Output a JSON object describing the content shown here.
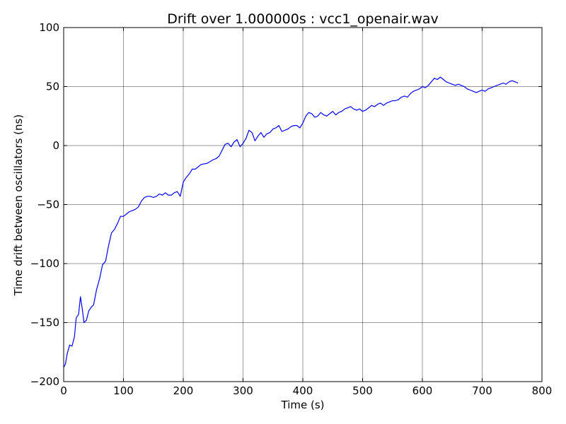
{
  "chart_data": {
    "type": "line",
    "title": "Drift over 1.000000s : vcc1_openair.wav",
    "xlabel": "Time (s)",
    "ylabel": "Time drift between oscillators (ns)",
    "xlim": [
      0,
      800
    ],
    "ylim": [
      -200,
      100
    ],
    "xticks": [
      0,
      100,
      200,
      300,
      400,
      500,
      600,
      700,
      800
    ],
    "yticks": [
      -200,
      -150,
      -100,
      -50,
      0,
      50,
      100
    ],
    "xtick_labels": [
      "0",
      "100",
      "200",
      "300",
      "400",
      "500",
      "600",
      "700",
      "800"
    ],
    "ytick_labels": [
      "−200",
      "−150",
      "−100",
      "−50",
      "0",
      "50",
      "100"
    ],
    "grid": true,
    "series": [
      {
        "color": "#0000ff",
        "x": [
          0,
          3,
          6,
          10,
          14,
          18,
          21,
          25,
          28,
          31,
          34,
          38,
          42,
          46,
          50,
          55,
          60,
          65,
          70,
          75,
          80,
          85,
          90,
          95,
          100,
          105,
          110,
          115,
          120,
          125,
          130,
          135,
          140,
          145,
          150,
          155,
          160,
          165,
          170,
          175,
          180,
          185,
          190,
          195,
          200,
          205,
          210,
          215,
          220,
          230,
          240,
          250,
          255,
          260,
          265,
          270,
          275,
          280,
          285,
          290,
          295,
          300,
          305,
          310,
          315,
          320,
          325,
          330,
          335,
          340,
          345,
          350,
          355,
          360,
          365,
          370,
          375,
          380,
          385,
          390,
          395,
          400,
          405,
          410,
          415,
          420,
          425,
          430,
          435,
          440,
          445,
          450,
          455,
          460,
          465,
          470,
          475,
          480,
          485,
          490,
          495,
          500,
          505,
          510,
          515,
          520,
          525,
          530,
          535,
          540,
          545,
          550,
          555,
          560,
          565,
          570,
          575,
          580,
          585,
          590,
          595,
          600,
          605,
          610,
          615,
          620,
          625,
          630,
          635,
          640,
          645,
          650,
          655,
          660,
          665,
          670,
          675,
          680,
          685,
          690,
          695,
          700,
          705,
          710,
          715,
          720,
          725,
          730,
          735,
          740,
          745,
          750,
          755,
          760
        ],
        "y": [
          -188,
          -185,
          -176,
          -169,
          -170,
          -162,
          -146,
          -143,
          -128,
          -138,
          -150,
          -148,
          -140,
          -137,
          -135,
          -122,
          -113,
          -101,
          -98,
          -85,
          -74,
          -71,
          -66,
          -60,
          -60,
          -58,
          -56,
          -55,
          -54,
          -52,
          -47,
          -44,
          -43,
          -43,
          -44,
          -43,
          -41,
          -42,
          -40,
          -42,
          -42,
          -40,
          -39,
          -43,
          -31,
          -27,
          -24,
          -20,
          -20,
          -16,
          -15,
          -12,
          -11,
          -9,
          -4,
          1,
          2,
          -1,
          3,
          5,
          -1,
          2,
          6,
          13,
          11,
          4,
          8,
          11,
          7,
          10,
          11,
          14,
          15,
          17,
          12,
          13,
          14,
          16,
          17,
          17,
          15,
          19,
          25,
          28,
          27,
          24,
          25,
          28,
          26,
          25,
          27,
          29,
          26,
          28,
          29,
          31,
          32,
          33,
          31,
          30,
          31,
          29,
          30,
          32,
          34,
          33,
          35,
          36,
          34,
          36,
          37,
          38,
          38,
          39,
          41,
          42,
          41,
          44,
          46,
          47,
          48,
          50,
          49,
          51,
          54,
          57,
          56,
          58,
          56,
          54,
          53,
          52,
          51,
          52,
          51,
          50,
          48,
          47,
          46,
          45,
          46,
          47,
          46,
          48,
          49,
          50,
          51,
          52,
          53,
          52,
          54,
          55,
          54,
          53
        ]
      }
    ]
  }
}
